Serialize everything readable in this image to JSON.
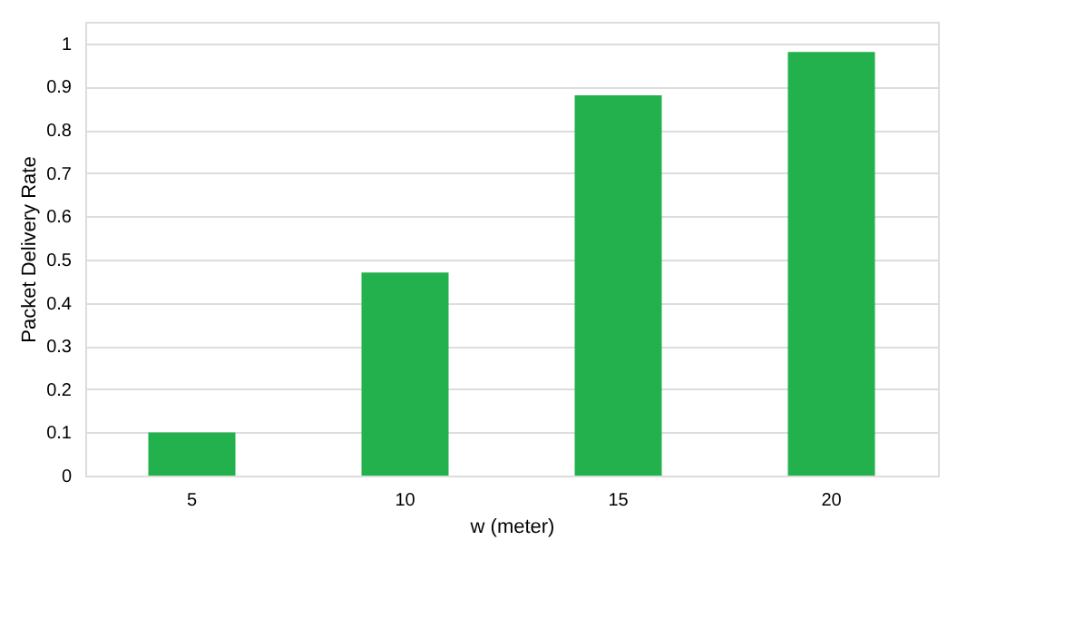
{
  "chart_data": {
    "type": "bar",
    "categories": [
      "5",
      "10",
      "15",
      "20"
    ],
    "values": [
      0.1,
      0.47,
      0.88,
      0.98
    ],
    "color": "#22b14c",
    "xlabel": "w (meter)",
    "ylabel": "Packet Delivery Rate",
    "ylim": [
      0,
      1.05
    ],
    "yticks": [
      0,
      0.1,
      0.2,
      0.3,
      0.4,
      0.5,
      0.6,
      0.7,
      0.8,
      0.9,
      1
    ],
    "grid": "y"
  }
}
